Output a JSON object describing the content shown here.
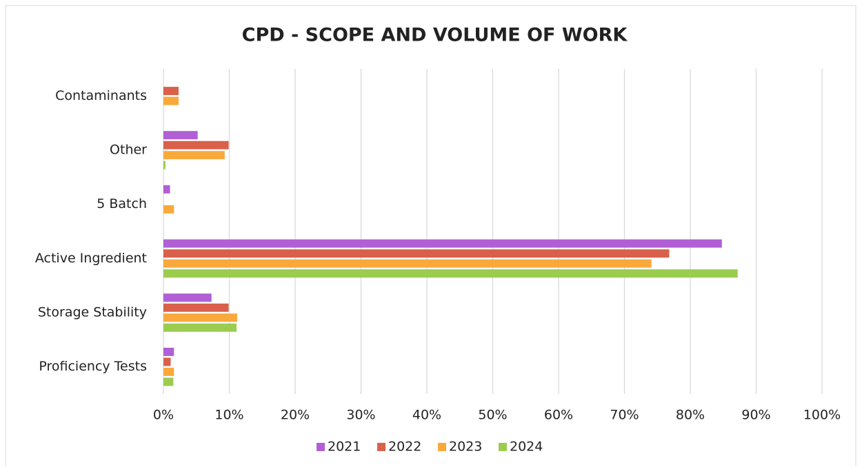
{
  "chart_data": {
    "type": "hbar",
    "title": "CPD - SCOPE AND VOLUME OF WORK",
    "categories": [
      "Contaminants",
      "Other",
      "5 Batch",
      "Active Ingredient",
      "Storage Stability",
      "Proficiency Tests"
    ],
    "series": [
      {
        "name": "2021",
        "color": "#b15fd5",
        "values": [
          0,
          5.2,
          1.0,
          84.8,
          7.3,
          1.6
        ]
      },
      {
        "name": "2022",
        "color": "#d9614b",
        "values": [
          2.3,
          9.9,
          0,
          76.8,
          9.9,
          1.1
        ]
      },
      {
        "name": "2023",
        "color": "#f9a93b",
        "values": [
          2.3,
          9.3,
          1.6,
          74.1,
          11.2,
          1.6
        ]
      },
      {
        "name": "2024",
        "color": "#9bcc4f",
        "values": [
          0,
          0.3,
          0,
          87.2,
          11.1,
          1.5
        ]
      }
    ],
    "xlim": [
      0,
      100
    ],
    "xticks": [
      {
        "value": 0,
        "label": "0%"
      },
      {
        "value": 10,
        "label": "10%"
      },
      {
        "value": 20,
        "label": "20%"
      },
      {
        "value": 30,
        "label": "30%"
      },
      {
        "value": 40,
        "label": "40%"
      },
      {
        "value": 50,
        "label": "50%"
      },
      {
        "value": 60,
        "label": "60%"
      },
      {
        "value": 70,
        "label": "70%"
      },
      {
        "value": 80,
        "label": "80%"
      },
      {
        "value": 90,
        "label": "90%"
      },
      {
        "value": 100,
        "label": "100%"
      }
    ],
    "grid": true,
    "legend": "bottom"
  }
}
